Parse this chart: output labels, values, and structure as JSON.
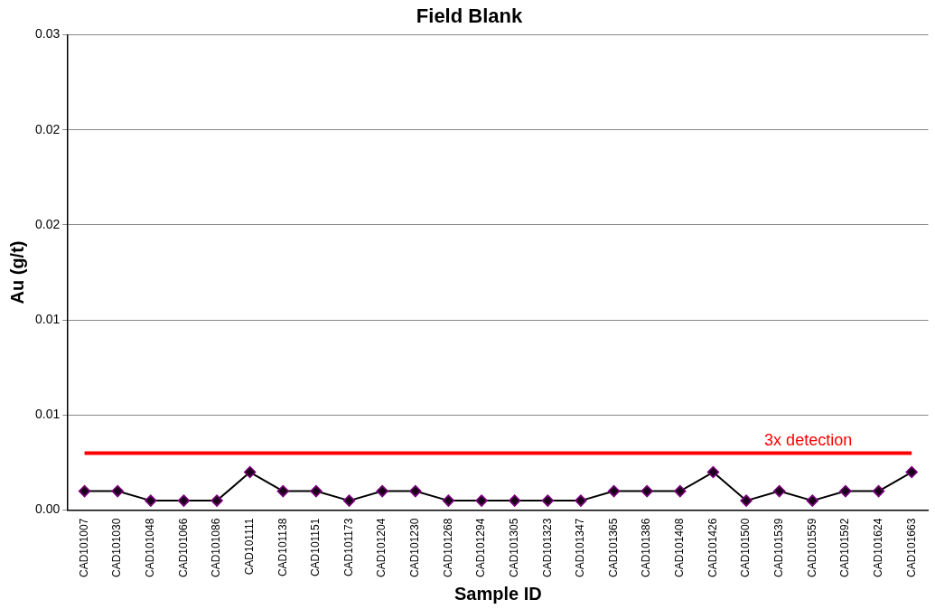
{
  "chart_data": {
    "type": "line",
    "title": "Field Blank",
    "xlabel": "Sample ID",
    "ylabel": "Au (g/t)",
    "categories": [
      "CAD101007",
      "CAD101030",
      "CAD101048",
      "CAD101066",
      "CAD101086",
      "CAD101111",
      "CAD101138",
      "CAD101151",
      "CAD101173",
      "CAD101204",
      "CAD101230",
      "CAD101268",
      "CAD101294",
      "CAD101305",
      "CAD101323",
      "CAD101347",
      "CAD101365",
      "CAD101386",
      "CAD101408",
      "CAD101426",
      "CAD101500",
      "CAD101539",
      "CAD101559",
      "CAD101592",
      "CAD101624",
      "CAD101663"
    ],
    "series": [
      {
        "color": "#000000",
        "values": [
          0.0012,
          0.0012,
          0.0006,
          0.0006,
          0.0006,
          0.0024,
          0.0012,
          0.0012,
          0.0006,
          0.0012,
          0.0012,
          0.0006,
          0.0006,
          0.0006,
          0.0006,
          0.0006,
          0.0012,
          0.0012,
          0.0012,
          0.0024,
          0.0006,
          0.0012,
          0.0006,
          0.0012,
          0.0012,
          0.0024
        ]
      }
    ],
    "ylim": [
      0,
      0.03
    ],
    "yticks": [
      {
        "value": 0,
        "label": "0.00"
      },
      {
        "value": 0.006,
        "label": "0.01"
      },
      {
        "value": 0.012,
        "label": "0.01"
      },
      {
        "value": 0.018,
        "label": "0.02"
      },
      {
        "value": 0.024,
        "label": "0.02"
      },
      {
        "value": 0.03,
        "label": "0.03"
      }
    ],
    "ref_lines": [
      {
        "axis": "y",
        "value": 0.0036,
        "label": "3x detection",
        "color": "#ff0000"
      }
    ],
    "grid": "y",
    "legend": false,
    "marker": "diamond",
    "line_style": "solid"
  }
}
